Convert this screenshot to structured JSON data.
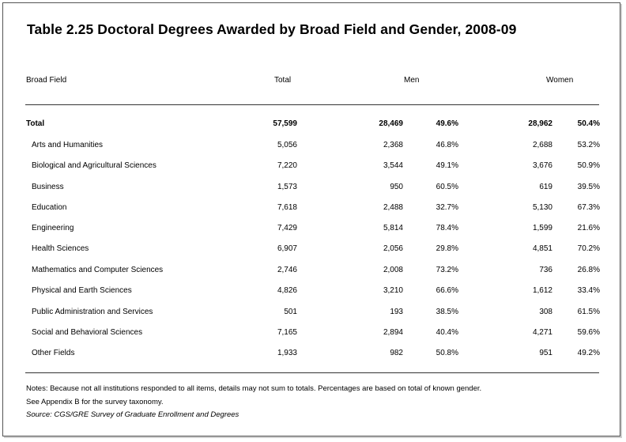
{
  "title": "Table 2.25  Doctoral Degrees Awarded by Broad Field and Gender, 2008-09",
  "headers": {
    "field": "Broad Field",
    "total": "Total",
    "men": "Men",
    "women": "Women"
  },
  "rows": [
    {
      "field": "Total",
      "total": "57,599",
      "men_n": "28,469",
      "men_pct": "49.6%",
      "women_n": "28,962",
      "women_pct": "50.4%"
    },
    {
      "field": "Arts and Humanities",
      "total": "5,056",
      "men_n": "2,368",
      "men_pct": "46.8%",
      "women_n": "2,688",
      "women_pct": "53.2%"
    },
    {
      "field": "Biological and Agricultural Sciences",
      "total": "7,220",
      "men_n": "3,544",
      "men_pct": "49.1%",
      "women_n": "3,676",
      "women_pct": "50.9%"
    },
    {
      "field": "Business",
      "total": "1,573",
      "men_n": "950",
      "men_pct": "60.5%",
      "women_n": "619",
      "women_pct": "39.5%"
    },
    {
      "field": "Education",
      "total": "7,618",
      "men_n": "2,488",
      "men_pct": "32.7%",
      "women_n": "5,130",
      "women_pct": "67.3%"
    },
    {
      "field": "Engineering",
      "total": "7,429",
      "men_n": "5,814",
      "men_pct": "78.4%",
      "women_n": "1,599",
      "women_pct": "21.6%"
    },
    {
      "field": "Health Sciences",
      "total": "6,907",
      "men_n": "2,056",
      "men_pct": "29.8%",
      "women_n": "4,851",
      "women_pct": "70.2%"
    },
    {
      "field": "Mathematics and Computer Sciences",
      "total": "2,746",
      "men_n": "2,008",
      "men_pct": "73.2%",
      "women_n": "736",
      "women_pct": "26.8%"
    },
    {
      "field": "Physical and Earth Sciences",
      "total": "4,826",
      "men_n": "3,210",
      "men_pct": "66.6%",
      "women_n": "1,612",
      "women_pct": "33.4%"
    },
    {
      "field": "Public Administration and Services",
      "total": "501",
      "men_n": "193",
      "men_pct": "38.5%",
      "women_n": "308",
      "women_pct": "61.5%"
    },
    {
      "field": "Social and Behavioral Sciences",
      "total": "7,165",
      "men_n": "2,894",
      "men_pct": "40.4%",
      "women_n": "4,271",
      "women_pct": "59.6%"
    },
    {
      "field": "Other Fields",
      "total": "1,933",
      "men_n": "982",
      "men_pct": "50.8%",
      "women_n": "951",
      "women_pct": "49.2%"
    }
  ],
  "notes": [
    "Notes: Because not all institutions responded to all items, details may not sum to totals. Percentages are based on total of known gender.",
    "See Appendix B for the survey taxonomy."
  ],
  "source": "Source: CGS/GRE Survey of Graduate Enrollment and Degrees"
}
